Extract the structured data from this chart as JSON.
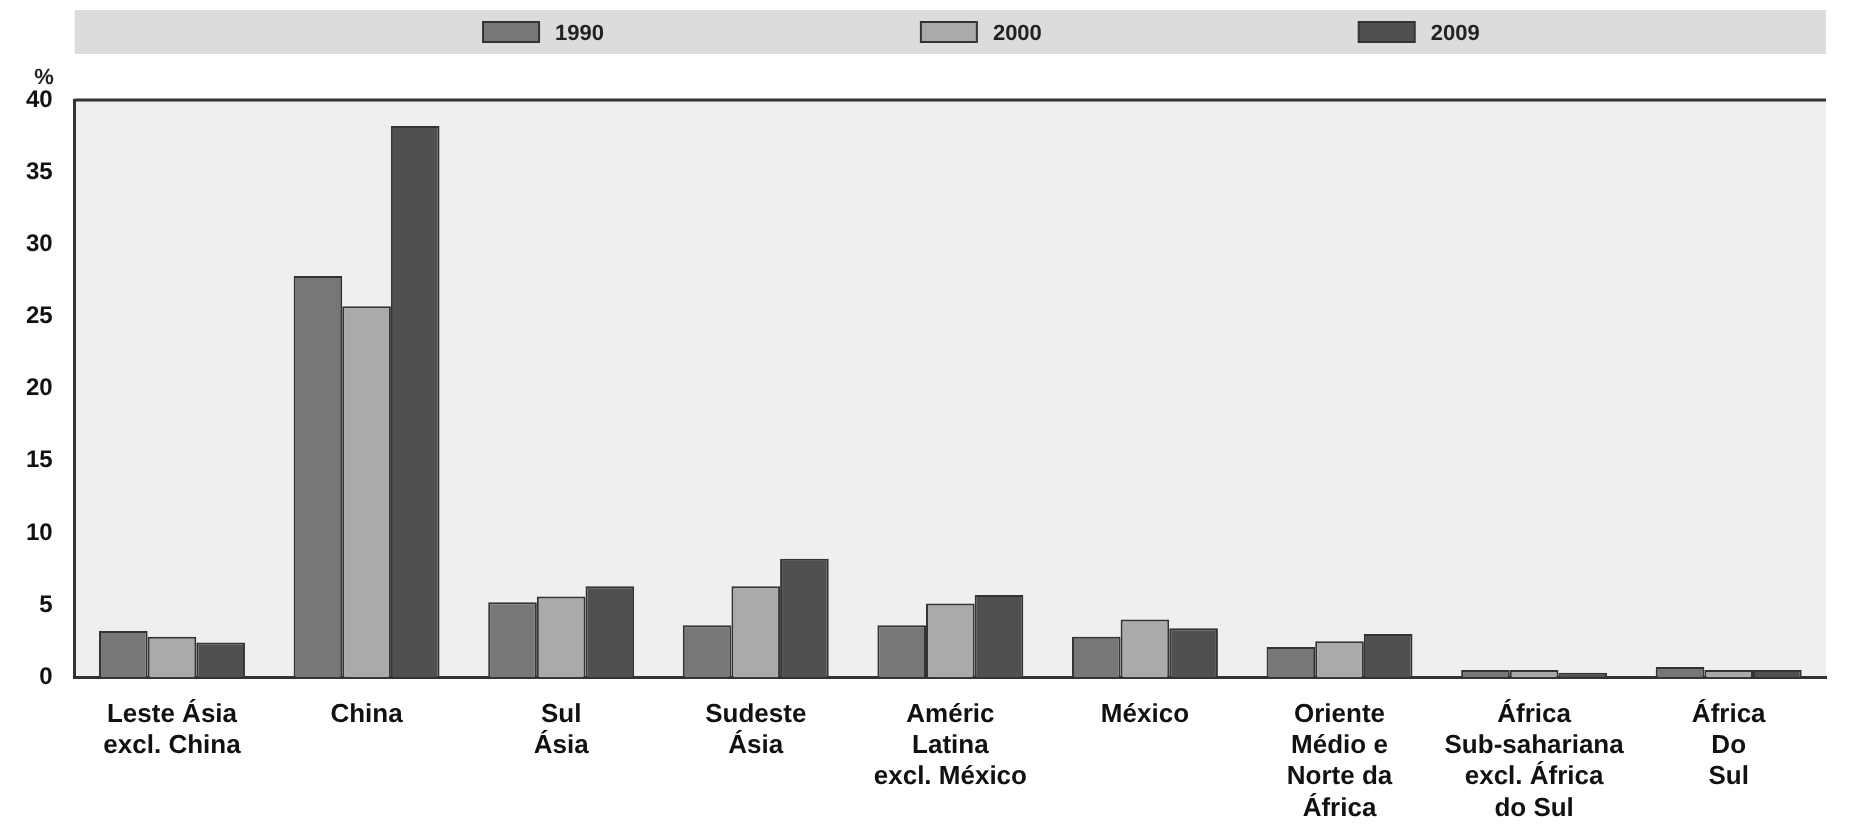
{
  "chart_data": {
    "type": "bar",
    "ylabel": "%",
    "categories": [
      "Leste Ásia\nexcl. China",
      "China",
      "Sul\nÁsia",
      "Sudeste\nÁsia",
      "Améric\nLatina\nexcl. México",
      "México",
      "Oriente\nMédio e\nNorte da\nÁfrica",
      "África\nSub-sahariana\nexcl. África\ndo Sul",
      "África\nDo\nSul"
    ],
    "series": [
      {
        "name": "1990",
        "color": "#777777",
        "values": [
          3.2,
          27.8,
          5.2,
          3.6,
          3.6,
          2.8,
          2.1,
          0.5,
          0.7
        ]
      },
      {
        "name": "2000",
        "color": "#aaaaaa",
        "values": [
          2.8,
          25.7,
          5.6,
          6.3,
          5.1,
          4.0,
          2.5,
          0.5,
          0.5
        ]
      },
      {
        "name": "2009",
        "color": "#505050",
        "values": [
          2.4,
          38.2,
          6.3,
          8.2,
          5.7,
          3.4,
          3.0,
          0.3,
          0.5
        ]
      }
    ],
    "ylim": [
      0,
      40
    ],
    "yticks": [
      0,
      5,
      10,
      15,
      20,
      25,
      30,
      35,
      40
    ],
    "grid": false,
    "legend": "top"
  }
}
